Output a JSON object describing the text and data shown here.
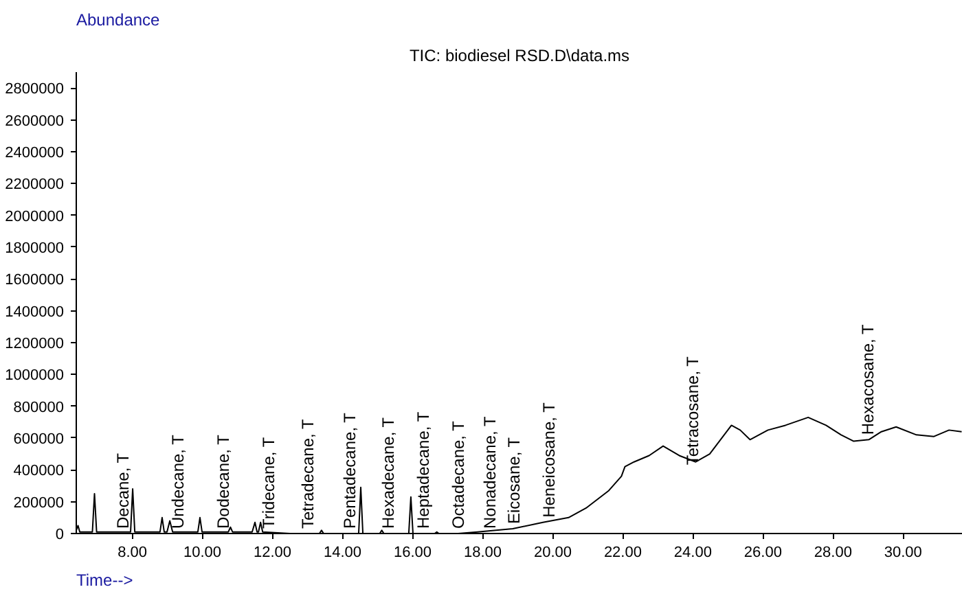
{
  "chart_data": {
    "type": "line",
    "title": "TIC: biodiesel RSD.D\\data.ms",
    "xlabel": "Time-->",
    "ylabel": "Abundance",
    "xlim": [
      6.4,
      31.7
    ],
    "ylim": [
      0,
      2900000
    ],
    "xticks": [
      {
        "value": 8,
        "label": "8.00"
      },
      {
        "value": 10,
        "label": "10.00"
      },
      {
        "value": 12,
        "label": "12.00"
      },
      {
        "value": 14,
        "label": "14.00"
      },
      {
        "value": 16,
        "label": "16.00"
      },
      {
        "value": 18,
        "label": "18.00"
      },
      {
        "value": 20,
        "label": "20.00"
      },
      {
        "value": 22,
        "label": "22.00"
      },
      {
        "value": 24,
        "label": "24.00"
      },
      {
        "value": 26,
        "label": "26.00"
      },
      {
        "value": 28,
        "label": "28.00"
      },
      {
        "value": 30,
        "label": "30.00"
      }
    ],
    "yticks": [
      0,
      200000,
      400000,
      600000,
      800000,
      1000000,
      1200000,
      1400000,
      1600000,
      1800000,
      2000000,
      2200000,
      2400000,
      2600000,
      2800000
    ],
    "grid": false,
    "marker": "none",
    "line_style": "solid",
    "series": [
      {
        "color": "#000000",
        "x": [
          6.4,
          6.45,
          6.5,
          6.6,
          6.86,
          6.92,
          6.98,
          7.5,
          7.95,
          8.01,
          8.07,
          8.5,
          8.79,
          8.85,
          8.91,
          8.99,
          9.07,
          9.15,
          9.5,
          9.87,
          9.93,
          9.99,
          10.5,
          10.74,
          10.8,
          10.86,
          11.2,
          11.42,
          11.5,
          11.56,
          11.6,
          11.66,
          11.72,
          12.5,
          13.34,
          13.4,
          13.46,
          14.2,
          14.46,
          14.52,
          14.58,
          15.06,
          15.12,
          15.18,
          15.89,
          15.95,
          16.01,
          16.63,
          16.69,
          16.75,
          17.3,
          17.85,
          18.86,
          19.72,
          20.45,
          20.95,
          21.6,
          21.96,
          22.06,
          22.32,
          22.75,
          23.15,
          23.61,
          24.08,
          24.48,
          25.1,
          25.35,
          25.63,
          26.14,
          26.64,
          27.29,
          27.8,
          28.23,
          28.59,
          29.02,
          29.38,
          29.8,
          30.38,
          30.88,
          31.31,
          31.67
        ],
        "values": [
          20000,
          50000,
          10000,
          10000,
          10000,
          250000,
          10000,
          10000,
          10000,
          280000,
          10000,
          10000,
          10000,
          100000,
          10000,
          10000,
          80000,
          10000,
          10000,
          10000,
          100000,
          10000,
          10000,
          10000,
          40000,
          10000,
          10000,
          10000,
          70000,
          10000,
          10000,
          70000,
          10000,
          0,
          0,
          20000,
          0,
          0,
          0,
          290000,
          0,
          0,
          20000,
          0,
          0,
          230000,
          0,
          0,
          10000,
          0,
          0,
          10000,
          30000,
          70000,
          100000,
          160000,
          270000,
          360000,
          420000,
          450000,
          490000,
          550000,
          490000,
          450000,
          500000,
          680000,
          650000,
          590000,
          650000,
          680000,
          730000,
          680000,
          620000,
          580000,
          590000,
          640000,
          670000,
          620000,
          610000,
          650000,
          640000
        ]
      }
    ],
    "annotations": [
      {
        "text": "Decane, T",
        "x": 7.74,
        "y": 30000
      },
      {
        "text": "Undecane, T",
        "x": 9.3,
        "y": 30000
      },
      {
        "text": "Dodecane, T",
        "x": 10.6,
        "y": 30000
      },
      {
        "text": "Tridecane, T",
        "x": 11.9,
        "y": 30000
      },
      {
        "text": "Tetradecane, T",
        "x": 13.0,
        "y": 30000
      },
      {
        "text": "Pentadecane, T",
        "x": 14.2,
        "y": 30000
      },
      {
        "text": "Hexadecane, T",
        "x": 15.3,
        "y": 30000
      },
      {
        "text": "Heptadecane, T",
        "x": 16.3,
        "y": 30000
      },
      {
        "text": "Octadecane, T",
        "x": 17.3,
        "y": 30000
      },
      {
        "text": "Nonadecane, T",
        "x": 18.2,
        "y": 30000
      },
      {
        "text": "Eicosane, T",
        "x": 18.9,
        "y": 60000
      },
      {
        "text": "Heneicosane, T",
        "x": 19.9,
        "y": 100000
      },
      {
        "text": "Tetracosane, T",
        "x": 24.0,
        "y": 430000
      },
      {
        "text": "Hexacosane, T",
        "x": 29.0,
        "y": 620000
      }
    ]
  }
}
